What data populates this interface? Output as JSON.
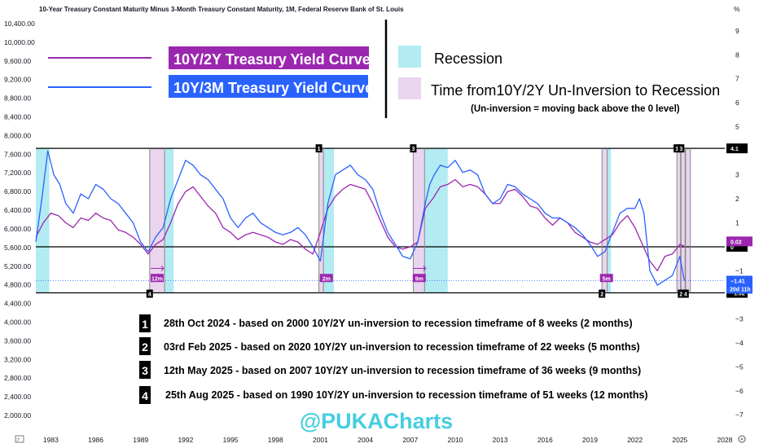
{
  "header": {
    "title": "10-Year Treasury Constant Maturity Minus 3-Month Treasury Constant Maturity, 1M, Federal Reserve Bank of St. Louis",
    "right_unit": "%"
  },
  "legend": {
    "series_10y2y": "10Y/2Y Treasury Yield Curve",
    "series_10y3m": "10Y/3M Treasury Yield Curve",
    "recession": "Recession",
    "uninversion": "Time from10Y/2Y Un-Inversion to Recession",
    "uninversion_note": "(Un-inversion = moving back above the 0 level)"
  },
  "colors": {
    "series_10y2y": "#9b27af",
    "series_10y3m": "#2962ff",
    "recession": "#b2ebf2",
    "uninversion": "#e9d5ee",
    "badge_purple": "#9b27af",
    "badge_blue": "#2962ff",
    "watermark": "#26c6da"
  },
  "annotations": [
    {
      "num": "1",
      "text": "28th Oct 2024 - based on 2000 10Y/2Y un-inversion to recession timeframe of 8 weeks (2 months)"
    },
    {
      "num": "2",
      "text": "03rd Feb 2025 - based on 2020 10Y/2Y un-inversion to recession timeframe of 22 weeks (5 months)"
    },
    {
      "num": "3",
      "text": "12th May 2025 - based on 2007 10Y/2Y un-inversion to recession timeframe of 36 weeks (9 months)"
    },
    {
      "num": "4",
      "text": "25th Aug 2025 - based on 1990 10Y/2Y un-inversion to recession timeframe of 51 weeks (12 months)"
    }
  ],
  "watermark": "@PUKACharts",
  "bottom_left_icon": "tradingview-logo-icon",
  "bottom_right_icon": "settings-gear-icon",
  "chart_data": {
    "type": "line",
    "x_range": [
      1982,
      2028
    ],
    "left_axis": {
      "ticks": [
        "10,400.00",
        "10,000.00",
        "9,600.00",
        "9,200.00",
        "8,800.00",
        "8,400.00",
        "8,000.00",
        "7,600.00",
        "7,200.00",
        "6,800.00",
        "6,400.00",
        "6,000.00",
        "5,600.00",
        "5,200.00",
        "4,800.00",
        "4,400.00",
        "4,000.00",
        "3,600.00",
        "3,200.00",
        "2,800.00",
        "2,400.00",
        "2,000.00"
      ],
      "values": [
        10400,
        10000,
        9600,
        9200,
        8800,
        8400,
        8000,
        7600,
        7200,
        6800,
        6400,
        6000,
        5600,
        5200,
        4800,
        4400,
        4000,
        3600,
        3200,
        2800,
        2400,
        2000
      ]
    },
    "right_axis": {
      "ticks": [
        "9",
        "8",
        "7",
        "6",
        "5",
        "4",
        "3",
        "2",
        "1",
        "−1",
        "−2",
        "−3",
        "−4",
        "−5",
        "−6",
        "−7"
      ],
      "values": [
        9,
        8,
        7,
        6,
        5,
        4,
        3,
        2,
        1,
        -1,
        -2,
        -3,
        -4,
        -5,
        -6,
        -7
      ],
      "ylim": [
        -7.4,
        9.4
      ]
    },
    "x_ticks": [
      "1983",
      "1986",
      "1989",
      "1992",
      "1995",
      "1998",
      "2001",
      "2004",
      "2007",
      "2010",
      "2013",
      "2016",
      "2019",
      "2022",
      "2025",
      "2028"
    ],
    "x_tick_values": [
      1983,
      1986,
      1989,
      1992,
      1995,
      1998,
      2001,
      2004,
      2007,
      2010,
      2013,
      2016,
      2019,
      2022,
      2025,
      2028
    ],
    "horizontal_levels": [
      {
        "value": 4.1,
        "label": "4.1",
        "style": "black"
      },
      {
        "value": 0,
        "label": "0",
        "style": "black"
      },
      {
        "value": -1.92,
        "label": "−1.92",
        "style": "black"
      }
    ],
    "price_labels": [
      {
        "value": 0.02,
        "label": "0.02",
        "color": "#9b27af"
      },
      {
        "value": -1.41,
        "label": "−1.41",
        "sub": "20d 11h",
        "color": "#2962ff"
      }
    ],
    "recessions": [
      [
        1982.0,
        1982.9
      ],
      [
        1990.6,
        1991.2
      ],
      [
        2001.2,
        2001.9
      ],
      [
        2007.95,
        2009.5
      ],
      [
        2020.15,
        2020.4
      ]
    ],
    "uninversion_periods": [
      [
        1989.6,
        1990.6
      ],
      [
        2000.9,
        2001.2
      ],
      [
        2007.2,
        2007.95
      ],
      [
        2019.8,
        2020.15
      ],
      [
        2024.8,
        2025.05
      ],
      [
        2025.08,
        2025.35
      ],
      [
        2025.38,
        2025.7
      ]
    ],
    "period_markers": [
      {
        "x": 2000.9,
        "num": "1",
        "pos": "top"
      },
      {
        "x": 2007.2,
        "num": "3",
        "pos": "top"
      },
      {
        "x": 1989.6,
        "num": "4",
        "pos": "bottom"
      },
      {
        "x": 2019.8,
        "num": "2",
        "pos": "bottom"
      },
      {
        "x": 2024.8,
        "num": "1",
        "pos": "top"
      },
      {
        "x": 2025.08,
        "num": "3",
        "pos": "top"
      },
      {
        "x": 2025.08,
        "num": "2",
        "pos": "bottom"
      },
      {
        "x": 2025.38,
        "num": "4",
        "pos": "bottom"
      }
    ],
    "duration_badges": [
      {
        "x": 1990.1,
        "label": "12m",
        "arrow": true
      },
      {
        "x": 2001.4,
        "label": "2m",
        "arrow": false
      },
      {
        "x": 2007.6,
        "label": "9m",
        "arrow": true
      },
      {
        "x": 2020.1,
        "label": "5m",
        "arrow": false
      }
    ],
    "series": [
      {
        "name": "10Y/2Y Treasury Yield Curve",
        "x": [
          1982.0,
          1982.5,
          1983.0,
          1983.5,
          1984.0,
          1984.5,
          1985.0,
          1985.5,
          1986.0,
          1986.5,
          1987.0,
          1987.5,
          1988.0,
          1988.5,
          1989.0,
          1989.5,
          1990.0,
          1990.5,
          1991.0,
          1991.5,
          1992.0,
          1992.5,
          1993.0,
          1993.5,
          1994.0,
          1994.5,
          1995.0,
          1995.5,
          1996.0,
          1996.5,
          1997.0,
          1997.5,
          1998.0,
          1998.5,
          1999.0,
          1999.5,
          2000.0,
          2000.5,
          2001.0,
          2001.5,
          2002.0,
          2002.5,
          2003.0,
          2003.5,
          2004.0,
          2004.5,
          2005.0,
          2005.5,
          2006.0,
          2006.5,
          2007.0,
          2007.5,
          2008.0,
          2008.5,
          2009.0,
          2009.5,
          2010.0,
          2010.5,
          2011.0,
          2011.5,
          2012.0,
          2012.5,
          2013.0,
          2013.5,
          2014.0,
          2014.5,
          2015.0,
          2015.5,
          2016.0,
          2016.5,
          2017.0,
          2017.5,
          2018.0,
          2018.5,
          2019.0,
          2019.5,
          2020.0,
          2020.5,
          2021.0,
          2021.5,
          2022.0,
          2022.5,
          2023.0,
          2023.5,
          2024.0,
          2024.5,
          2025.0,
          2025.3
        ],
        "values": [
          0.4,
          1.0,
          1.4,
          1.3,
          1.0,
          0.8,
          1.2,
          1.1,
          1.4,
          1.2,
          1.1,
          0.7,
          0.6,
          0.4,
          0.1,
          -0.3,
          0.1,
          0.3,
          1.0,
          1.8,
          2.3,
          2.5,
          2.1,
          1.7,
          1.4,
          0.8,
          0.6,
          0.3,
          0.5,
          0.6,
          0.5,
          0.4,
          0.2,
          0.1,
          0.3,
          0.2,
          -0.1,
          -0.3,
          0.6,
          1.6,
          2.1,
          2.4,
          2.6,
          2.5,
          2.4,
          1.8,
          1.1,
          0.4,
          0.0,
          -0.1,
          0.0,
          0.2,
          1.6,
          2.0,
          2.5,
          2.6,
          2.8,
          2.5,
          2.6,
          2.5,
          2.2,
          1.8,
          1.8,
          2.3,
          2.4,
          2.1,
          1.7,
          1.6,
          1.2,
          0.9,
          1.2,
          1.0,
          0.6,
          0.4,
          0.2,
          0.1,
          0.3,
          0.5,
          1.0,
          1.3,
          0.8,
          0.1,
          -0.6,
          -1.0,
          -0.4,
          -0.3,
          0.1,
          0.02
        ]
      },
      {
        "name": "10Y/3M Treasury Yield Curve",
        "x": [
          1982.0,
          1982.4,
          1982.8,
          1983.2,
          1983.6,
          1984.0,
          1984.5,
          1985.0,
          1985.5,
          1986.0,
          1986.5,
          1987.0,
          1987.5,
          1988.0,
          1988.5,
          1989.0,
          1989.5,
          1990.0,
          1990.5,
          1991.0,
          1991.5,
          1992.0,
          1992.5,
          1993.0,
          1993.5,
          1994.0,
          1994.5,
          1995.0,
          1995.5,
          1996.0,
          1996.5,
          1997.0,
          1997.5,
          1998.0,
          1998.5,
          1999.0,
          1999.5,
          2000.0,
          2000.5,
          2001.0,
          2001.5,
          2002.0,
          2002.5,
          2003.0,
          2003.5,
          2004.0,
          2004.5,
          2005.0,
          2005.5,
          2006.0,
          2006.5,
          2007.0,
          2007.5,
          2008.0,
          2008.3,
          2008.6,
          2009.0,
          2009.5,
          2010.0,
          2010.5,
          2011.0,
          2011.5,
          2012.0,
          2012.5,
          2013.0,
          2013.5,
          2014.0,
          2014.5,
          2015.0,
          2015.5,
          2016.0,
          2016.5,
          2017.0,
          2017.5,
          2018.0,
          2018.5,
          2019.0,
          2019.5,
          2020.0,
          2020.5,
          2021.0,
          2021.5,
          2022.0,
          2022.3,
          2022.6,
          2023.0,
          2023.5,
          2024.0,
          2024.5,
          2025.0,
          2025.3
        ],
        "values": [
          0.2,
          2.0,
          4.0,
          3.0,
          2.6,
          1.8,
          1.4,
          2.2,
          2.0,
          2.6,
          2.4,
          2.0,
          1.8,
          1.4,
          1.0,
          0.2,
          -0.2,
          0.4,
          0.8,
          2.0,
          2.8,
          3.6,
          3.4,
          3.0,
          2.8,
          2.4,
          2.0,
          1.2,
          0.8,
          1.2,
          1.4,
          1.0,
          0.8,
          0.6,
          0.5,
          0.6,
          0.8,
          0.5,
          0.0,
          -0.6,
          1.8,
          3.0,
          3.2,
          3.4,
          3.0,
          2.8,
          2.4,
          1.4,
          0.6,
          0.1,
          -0.4,
          -0.5,
          0.2,
          1.8,
          2.6,
          3.0,
          3.4,
          3.3,
          3.6,
          3.1,
          3.2,
          3.0,
          2.2,
          1.8,
          2.0,
          2.6,
          2.5,
          2.2,
          2.0,
          1.8,
          1.4,
          1.2,
          1.2,
          1.0,
          0.8,
          0.5,
          0.1,
          -0.4,
          -0.2,
          0.6,
          1.4,
          1.6,
          1.6,
          2.0,
          1.4,
          -1.0,
          -1.6,
          -1.4,
          -1.2,
          -0.4,
          -1.41
        ]
      }
    ]
  }
}
